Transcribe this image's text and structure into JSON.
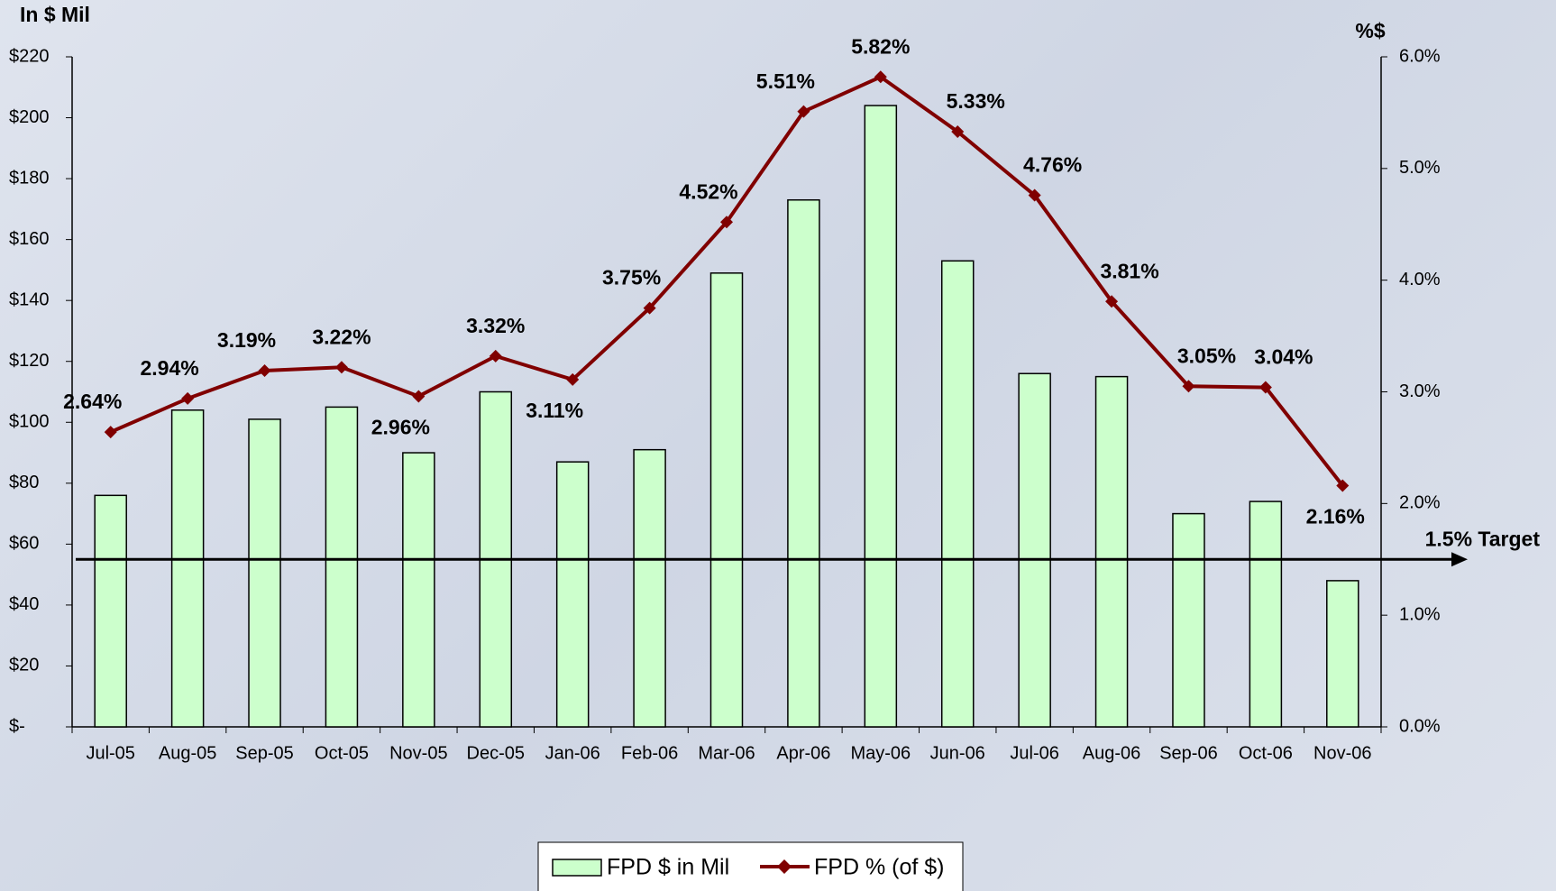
{
  "chart_data": {
    "type": "bar_line",
    "y_axis_title": "In $ Mil",
    "y2_axis_title": "%$",
    "categories": [
      "Jul-05",
      "Aug-05",
      "Sep-05",
      "Oct-05",
      "Nov-05",
      "Dec-05",
      "Jan-06",
      "Feb-06",
      "Mar-06",
      "Apr-06",
      "May-06",
      "Jun-06",
      "Jul-06",
      "Aug-06",
      "Sep-06",
      "Oct-06",
      "Nov-06"
    ],
    "series": [
      {
        "name": "FPD $ in Mil",
        "type": "bar",
        "color": "#ccffcc",
        "values": [
          76,
          104,
          101,
          105,
          90,
          110,
          87,
          91,
          149,
          173,
          204,
          153,
          116,
          115,
          70,
          74,
          48
        ]
      },
      {
        "name": "FPD % (of $)",
        "type": "line",
        "axis": "y2",
        "color": "#800000",
        "values": [
          2.64,
          2.94,
          3.19,
          3.22,
          2.96,
          3.32,
          3.11,
          3.75,
          4.52,
          5.51,
          5.82,
          5.33,
          4.76,
          3.81,
          3.05,
          3.04,
          2.16
        ],
        "value_labels": [
          "2.64%",
          "2.94%",
          "3.19%",
          "3.22%",
          "2.96%",
          "3.32%",
          "3.11%",
          "3.75%",
          "4.52%",
          "5.51%",
          "5.82%",
          "5.33%",
          "4.76%",
          "3.81%",
          "3.05%",
          "3.04%",
          "2.16%"
        ]
      }
    ],
    "ylim": [
      0,
      220
    ],
    "yticks": [
      {
        "value": 0,
        "label": "$-"
      },
      {
        "value": 20,
        "label": "$20"
      },
      {
        "value": 40,
        "label": "$40"
      },
      {
        "value": 60,
        "label": "$60"
      },
      {
        "value": 80,
        "label": "$80"
      },
      {
        "value": 100,
        "label": "$100"
      },
      {
        "value": 120,
        "label": "$120"
      },
      {
        "value": 140,
        "label": "$140"
      },
      {
        "value": 160,
        "label": "$160"
      },
      {
        "value": 180,
        "label": "$180"
      },
      {
        "value": 200,
        "label": "$200"
      },
      {
        "value": 220,
        "label": "$220"
      }
    ],
    "y2lim": [
      0,
      6
    ],
    "y2ticks": [
      {
        "value": 0,
        "label": "0.0%"
      },
      {
        "value": 1,
        "label": "1.0%"
      },
      {
        "value": 2,
        "label": "2.0%"
      },
      {
        "value": 3,
        "label": "3.0%"
      },
      {
        "value": 4,
        "label": "4.0%"
      },
      {
        "value": 5,
        "label": "5.0%"
      },
      {
        "value": 6,
        "label": "6.0%"
      }
    ],
    "target": {
      "value": 1.5,
      "label": "1.5% Target"
    },
    "legend": "bottom"
  }
}
